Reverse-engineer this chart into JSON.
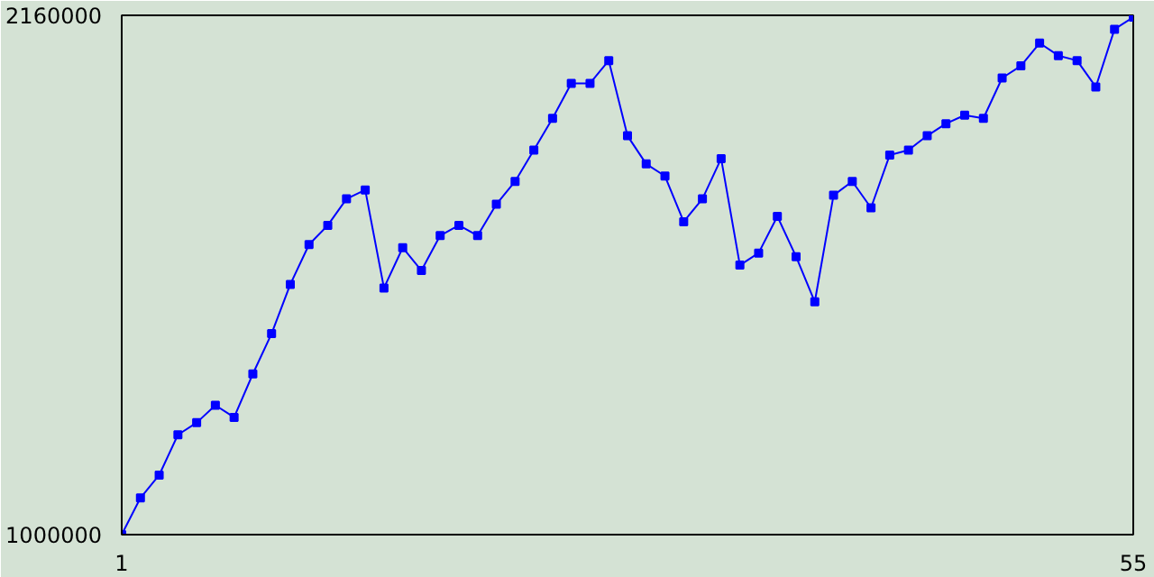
{
  "chart_data": {
    "type": "line",
    "x": [
      1,
      2,
      3,
      4,
      5,
      6,
      7,
      8,
      9,
      10,
      11,
      12,
      13,
      14,
      15,
      16,
      17,
      18,
      19,
      20,
      21,
      22,
      23,
      24,
      25,
      26,
      27,
      28,
      29,
      30,
      31,
      32,
      33,
      34,
      35,
      36,
      37,
      38,
      39,
      40,
      41,
      42,
      43,
      44,
      45,
      46,
      47,
      48,
      49,
      50,
      51,
      52,
      53,
      54,
      55
    ],
    "series": [
      {
        "color": "#0000ff",
        "values": [
          1000000,
          1082000,
          1133000,
          1223000,
          1250000,
          1289000,
          1262000,
          1359000,
          1449000,
          1559000,
          1648000,
          1691000,
          1750000,
          1770000,
          1551000,
          1641000,
          1590000,
          1668000,
          1691000,
          1668000,
          1738000,
          1789000,
          1859000,
          1930000,
          2008000,
          2008000,
          2059000,
          1891000,
          1828000,
          1801000,
          1699000,
          1750000,
          1840000,
          1602000,
          1629000,
          1711000,
          1621000,
          1520000,
          1758000,
          1789000,
          1730000,
          1848000,
          1859000,
          1891000,
          1918000,
          1937000,
          1930000,
          2020000,
          2047000,
          2098000,
          2070000,
          2059000,
          2000000,
          2129000,
          2156000
        ]
      }
    ],
    "xlim": [
      1,
      55
    ],
    "ylim": [
      1000000,
      2160000
    ],
    "xticks": [
      1,
      55
    ],
    "yticks": [
      1000000,
      2160000
    ],
    "marker": "square",
    "line_style": "solid"
  }
}
